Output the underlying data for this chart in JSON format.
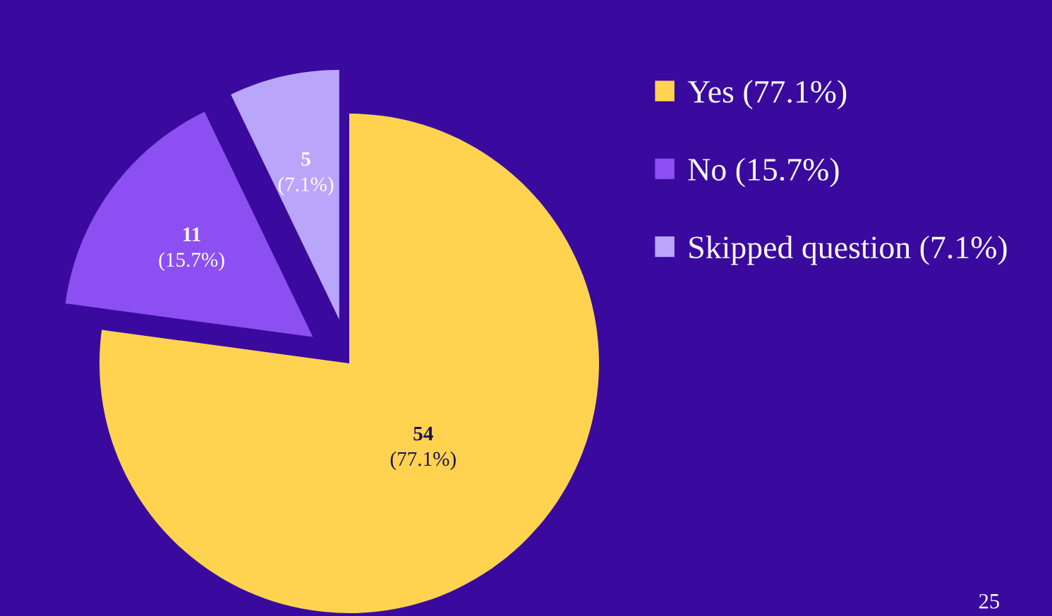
{
  "chart_data": {
    "type": "pie",
    "categories": [
      "Yes (77.1%)",
      "No (15.7%)",
      "Skipped question (7.1%)"
    ],
    "values": [
      54,
      11,
      5
    ],
    "colors": [
      "#ffd34f",
      "#8b4ff2",
      "#b9a6fb"
    ],
    "value_labels": [
      "54\n(77.1%)",
      "11\n(15.7%)",
      "5\n(7.1%)"
    ],
    "legend": "right",
    "annotations": [
      "25"
    ]
  }
}
